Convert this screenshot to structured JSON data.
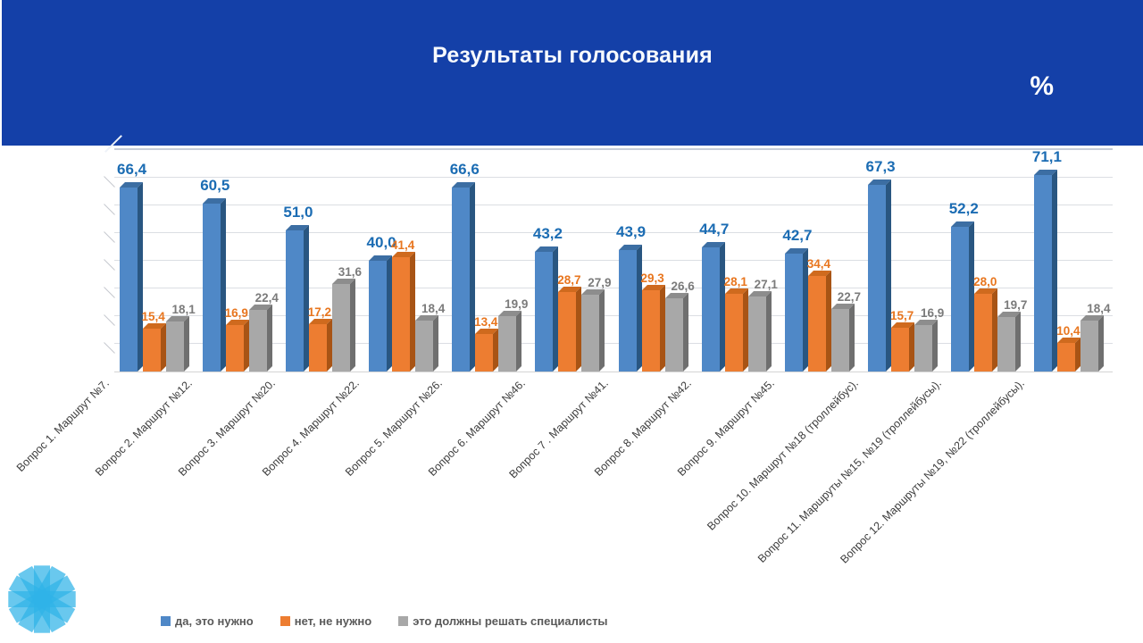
{
  "header": {
    "title": "Результаты голосования",
    "unit_label": "%",
    "background_color": "#1440a8"
  },
  "chart_data": {
    "type": "bar",
    "style": "3d-clustered-column",
    "title": "Результаты голосования",
    "ylabel": "%",
    "ylim": [
      0,
      80
    ],
    "grid": true,
    "legend_position": "bottom",
    "value_label_decimal_separator": ",",
    "categories": [
      "Вопрос 1. Маршрут №7.",
      "Вопрос 2. Маршрут №12.",
      "Вопрос 3. Маршрут №20.",
      "Вопрос 4. Маршрут №22.",
      "Вопрос 5. Маршрут №26.",
      "Вопрос 6. Маршрут №46.",
      "Вопрос 7 . Маршрут №41.",
      "Вопрос 8. Маршрут №42.",
      "Вопрос 9. Маршрут №45.",
      "Вопрос 10. Маршрут №18 (троллейбус).",
      "Вопрос 11. Маршруты №15, №19 (троллейбусы).",
      "Вопрос 12. Маршруты №19, №22 (троллейбусы)."
    ],
    "series": [
      {
        "name": "да, это нужно",
        "color": "#4f88c7",
        "values": [
          66.4,
          60.5,
          51.0,
          40.0,
          66.6,
          43.2,
          43.9,
          44.7,
          42.7,
          67.3,
          52.2,
          71.1
        ]
      },
      {
        "name": "нет, не нужно",
        "color": "#ed7d31",
        "values": [
          15.4,
          16.9,
          17.2,
          41.4,
          13.4,
          28.7,
          29.3,
          28.1,
          34.4,
          15.7,
          28.0,
          10.4
        ]
      },
      {
        "name": "это должны решать специалисты",
        "color": "#a8a8a8",
        "values": [
          18.1,
          22.4,
          31.6,
          18.4,
          19.9,
          27.9,
          26.6,
          27.1,
          22.7,
          16.9,
          19.7,
          18.4
        ]
      }
    ]
  },
  "logo": {
    "name": "starburst-logo",
    "color": "#2fb3e8"
  }
}
